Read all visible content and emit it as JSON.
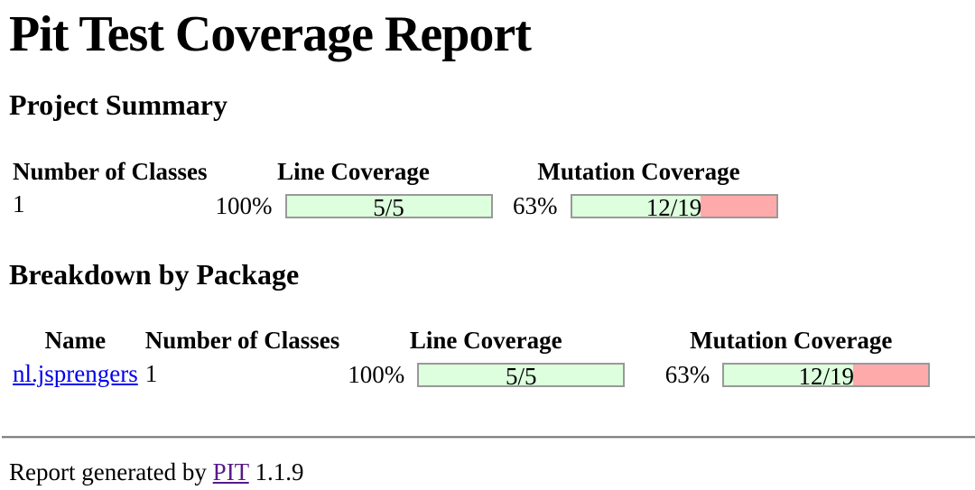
{
  "title": "Pit Test Coverage Report",
  "project_summary": {
    "heading": "Project Summary",
    "columns": [
      "Number of Classes",
      "Line Coverage",
      "Mutation Coverage"
    ],
    "rows": [
      {
        "number_of_classes": "1",
        "line_coverage": {
          "percent": "100%",
          "legend": "5/5",
          "covered_pct": 100
        },
        "mutation_coverage": {
          "percent": "63%",
          "legend": "12/19",
          "covered_pct": 63
        }
      }
    ]
  },
  "breakdown_by_package": {
    "heading": "Breakdown by Package",
    "columns": [
      "Name",
      "Number of Classes",
      "Line Coverage",
      "Mutation Coverage"
    ],
    "rows": [
      {
        "name": "nl.jsprengers",
        "number_of_classes": "1",
        "line_coverage": {
          "percent": "100%",
          "legend": "5/5",
          "covered_pct": 100
        },
        "mutation_coverage": {
          "percent": "63%",
          "legend": "12/19",
          "covered_pct": 63
        }
      }
    ]
  },
  "footer": {
    "prefix": "Report generated by",
    "link_label": "PIT",
    "version": "1.1.9"
  },
  "colors": {
    "coverage_complete_green": "#DDFFDD",
    "coverage_incomplete_red": "#FFAAAA",
    "bar_border_gray": "#999999",
    "package_link_blue": "#0000EE",
    "visited_link_purple": "#551A8B"
  }
}
